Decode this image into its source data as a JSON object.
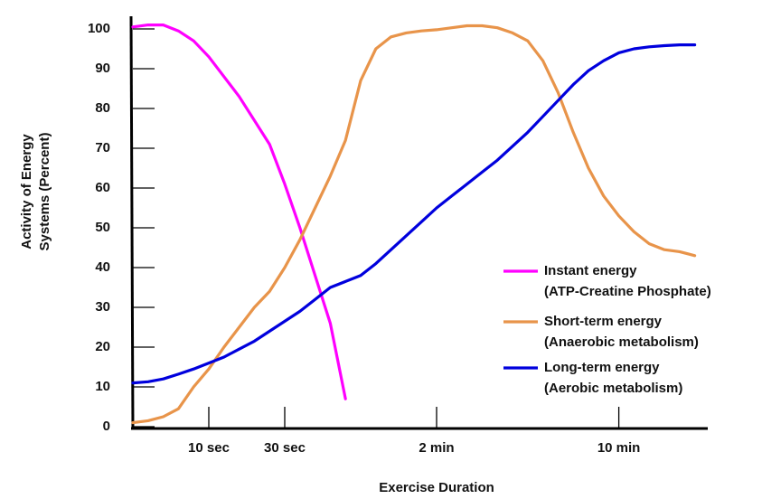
{
  "chart_data": {
    "type": "line",
    "y_label": [
      "Activity of Energy",
      "Systems (Percent)"
    ],
    "x_label": "Exercise Duration",
    "categories": [
      null,
      null,
      null,
      null,
      null,
      "10 sec",
      null,
      null,
      null,
      null,
      "30 sec",
      null,
      null,
      null,
      null,
      null,
      null,
      null,
      null,
      null,
      "2 min",
      null,
      null,
      null,
      null,
      null,
      null,
      null,
      null,
      null,
      null,
      null,
      "10 min",
      null,
      null,
      null,
      null,
      null
    ],
    "ylim": [
      0,
      100
    ],
    "yticks": [
      0,
      10,
      20,
      30,
      40,
      50,
      60,
      70,
      80,
      90,
      100
    ],
    "legend": "right",
    "series": [
      {
        "name": "Instant energy",
        "description": "(ATP-Creatine Phosphate)",
        "color": "#ff00ff",
        "values": [
          100.5,
          101,
          101,
          99.5,
          97,
          93,
          88,
          83,
          77,
          71,
          61,
          50,
          38,
          26,
          7,
          null,
          null,
          null,
          null,
          null,
          null,
          null,
          null,
          null,
          null,
          null,
          null,
          null,
          null,
          null,
          null,
          null,
          null,
          null,
          null,
          null,
          null,
          null
        ]
      },
      {
        "name": "Short-term energy",
        "description": "(Anaerobic metabolism)",
        "color": "#e8944a",
        "values": [
          1,
          1.5,
          2.5,
          4.5,
          10,
          14.5,
          20,
          25,
          30,
          34,
          40,
          47,
          55,
          63,
          72,
          87,
          95,
          98,
          99,
          99.5,
          99.8,
          100.3,
          100.8,
          100.8,
          100.3,
          99,
          97,
          92,
          84,
          74,
          65,
          58,
          53,
          49,
          46,
          44.5,
          44,
          43
        ]
      },
      {
        "name": "Long-term energy",
        "description": "(Aerobic metabolism)",
        "color": "#0000dd",
        "values": [
          11,
          11.3,
          12,
          13.2,
          14.5,
          16,
          17.5,
          19.5,
          21.5,
          24,
          26.5,
          29,
          32,
          35,
          36.5,
          38,
          41,
          44.5,
          48,
          51.5,
          55,
          58,
          61,
          64,
          67,
          70.5,
          74,
          78,
          82,
          86,
          89.5,
          92,
          94,
          95,
          95.5,
          95.8,
          96,
          96
        ]
      }
    ]
  }
}
